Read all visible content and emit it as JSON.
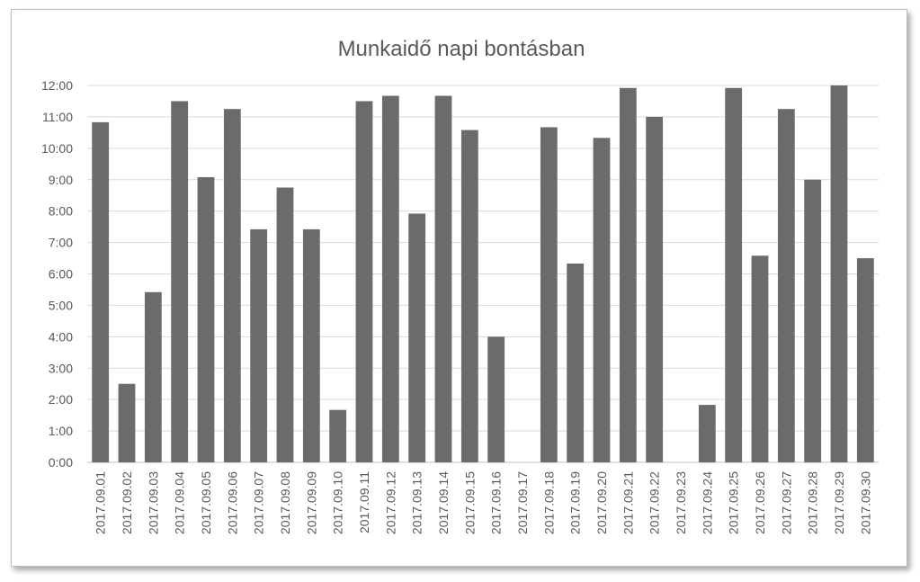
{
  "chart_data": {
    "type": "bar",
    "title": "Munkaidő napi bontásban",
    "xlabel": "",
    "ylabel": "",
    "categories": [
      "2017.09.01",
      "2017.09.02",
      "2017.09.03",
      "2017.09.04",
      "2017.09.05",
      "2017.09.06",
      "2017.09.07",
      "2017.09.08",
      "2017.09.09",
      "2017.09.10",
      "2017.09.11",
      "2017.09.12",
      "2017.09.13",
      "2017.09.14",
      "2017.09.15",
      "2017.09.16",
      "2017.09.17",
      "2017.09.18",
      "2017.09.19",
      "2017.09.20",
      "2017.09.21",
      "2017.09.22",
      "2017.09.23",
      "2017.09.24",
      "2017.09.25",
      "2017.09.26",
      "2017.09.27",
      "2017.09.28",
      "2017.09.29",
      "2017.09.30"
    ],
    "values": [
      10.83,
      2.5,
      5.42,
      11.5,
      9.08,
      11.25,
      7.42,
      8.75,
      7.42,
      1.67,
      11.5,
      11.67,
      7.92,
      11.67,
      10.58,
      4.0,
      0,
      10.67,
      6.33,
      10.33,
      11.92,
      11.0,
      0,
      1.83,
      11.92,
      6.58,
      11.25,
      9.0,
      12.0,
      6.5
    ],
    "ylim": [
      0,
      12
    ],
    "y_ticks": [
      "0:00",
      "1:00",
      "2:00",
      "3:00",
      "4:00",
      "5:00",
      "6:00",
      "7:00",
      "8:00",
      "9:00",
      "10:00",
      "11:00",
      "12:00"
    ],
    "bar_color": "#6b6b6b",
    "grid": true,
    "legend": "none"
  }
}
